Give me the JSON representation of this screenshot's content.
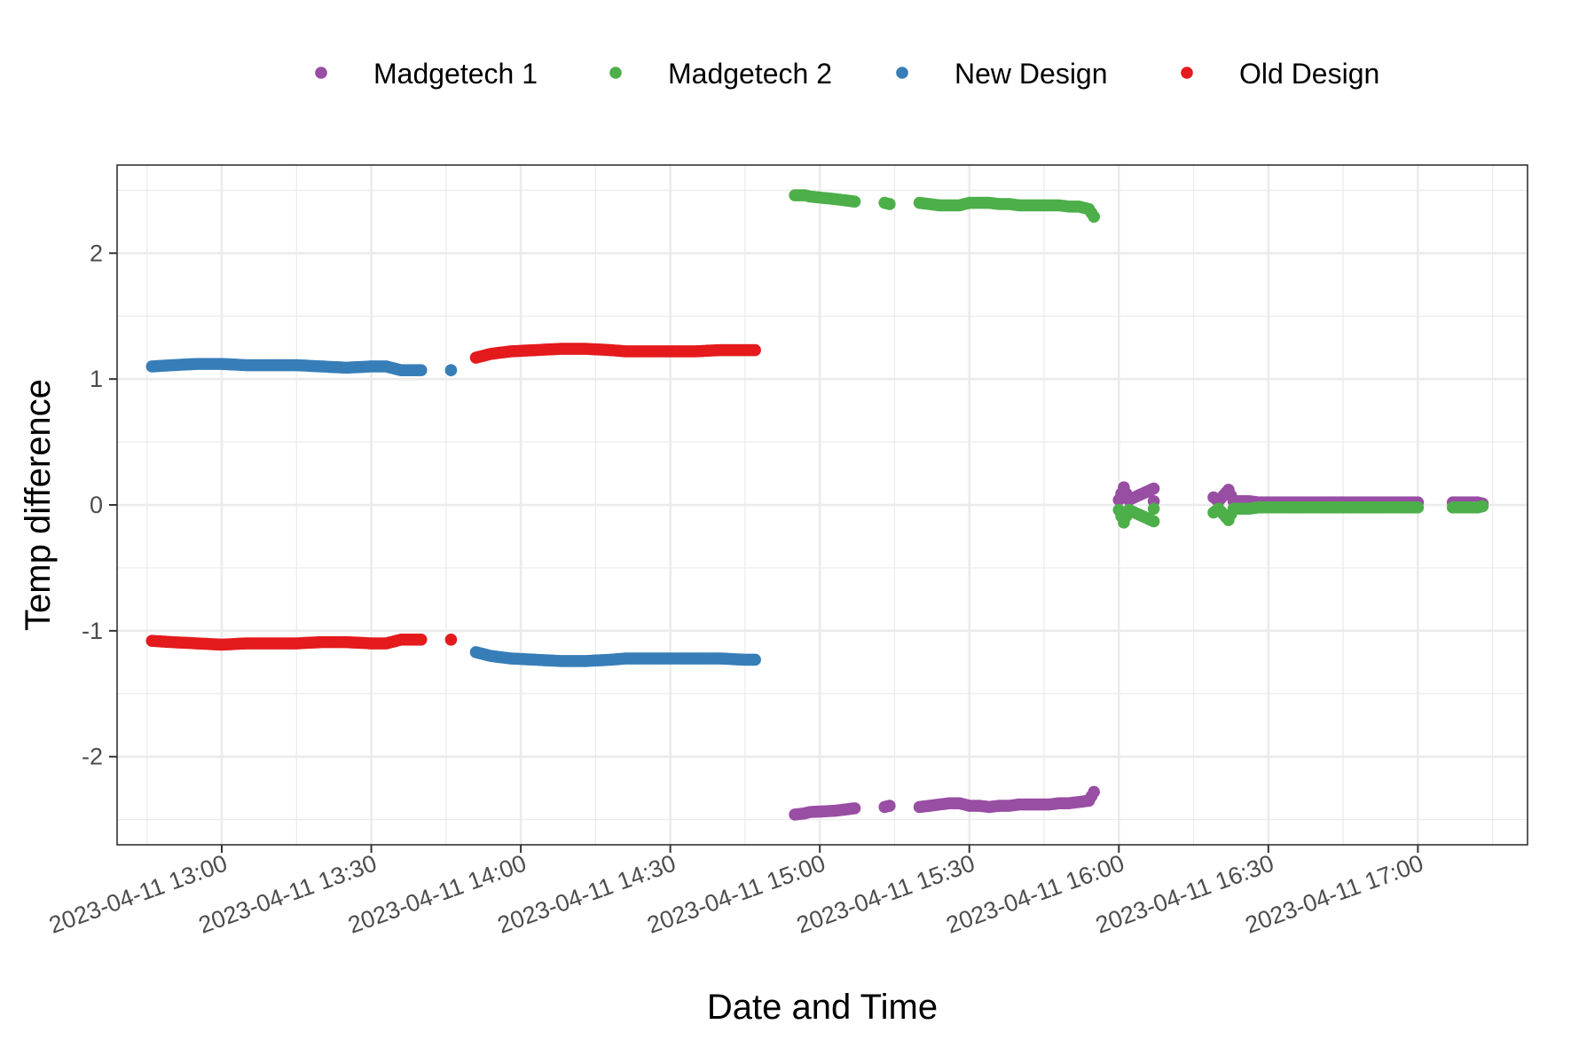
{
  "chart_data": {
    "type": "scatter",
    "title": "",
    "xlabel": "Date and Time",
    "ylabel": "Temp difference",
    "x_type": "datetime",
    "xlim": [
      "2023-04-11 12:39",
      "2023-04-11 17:22"
    ],
    "ylim": [
      -2.7,
      2.7
    ],
    "x_ticks": [
      {
        "value": "2023-04-11 13:00",
        "label": "2023-04-11 13:00"
      },
      {
        "value": "2023-04-11 13:30",
        "label": "2023-04-11 13:30"
      },
      {
        "value": "2023-04-11 14:00",
        "label": "2023-04-11 14:00"
      },
      {
        "value": "2023-04-11 14:30",
        "label": "2023-04-11 14:30"
      },
      {
        "value": "2023-04-11 15:00",
        "label": "2023-04-11 15:00"
      },
      {
        "value": "2023-04-11 15:30",
        "label": "2023-04-11 15:30"
      },
      {
        "value": "2023-04-11 16:00",
        "label": "2023-04-11 16:00"
      },
      {
        "value": "2023-04-11 16:30",
        "label": "2023-04-11 16:30"
      },
      {
        "value": "2023-04-11 17:00",
        "label": "2023-04-11 17:00"
      }
    ],
    "y_ticks": [
      {
        "value": 2,
        "label": "2"
      },
      {
        "value": 1,
        "label": "1"
      },
      {
        "value": 0,
        "label": "0"
      },
      {
        "value": -1,
        "label": "-1"
      },
      {
        "value": -2,
        "label": "-2"
      }
    ],
    "grid": true,
    "legend_position": "top",
    "series": [
      {
        "name": "Madgetech 1",
        "color": "#984EA3",
        "points": [
          [
            "2023-04-11 14:55",
            -2.46
          ],
          [
            "2023-04-11 14:57",
            -2.45
          ],
          [
            "2023-04-11 14:58",
            -2.44
          ],
          [
            "2023-04-11 15:03",
            -2.43
          ],
          [
            "2023-04-11 15:05",
            -2.42
          ],
          [
            "2023-04-11 15:07",
            -2.41
          ],
          [
            "2023-04-11 15:13",
            -2.4
          ],
          [
            "2023-04-11 15:14",
            -2.39
          ],
          [
            "2023-04-11 15:20",
            -2.4
          ],
          [
            "2023-04-11 15:22",
            -2.39
          ],
          [
            "2023-04-11 15:24",
            -2.38
          ],
          [
            "2023-04-11 15:26",
            -2.37
          ],
          [
            "2023-04-11 15:28",
            -2.37
          ],
          [
            "2023-04-11 15:30",
            -2.39
          ],
          [
            "2023-04-11 15:32",
            -2.39
          ],
          [
            "2023-04-11 15:34",
            -2.4
          ],
          [
            "2023-04-11 15:36",
            -2.39
          ],
          [
            "2023-04-11 15:38",
            -2.39
          ],
          [
            "2023-04-11 15:40",
            -2.38
          ],
          [
            "2023-04-11 15:42",
            -2.38
          ],
          [
            "2023-04-11 15:44",
            -2.38
          ],
          [
            "2023-04-11 15:46",
            -2.38
          ],
          [
            "2023-04-11 15:48",
            -2.37
          ],
          [
            "2023-04-11 15:50",
            -2.37
          ],
          [
            "2023-04-11 15:52",
            -2.36
          ],
          [
            "2023-04-11 15:54",
            -2.35
          ],
          [
            "2023-04-11 15:55",
            -2.28
          ],
          [
            "2023-04-11 16:00",
            0.04
          ],
          [
            "2023-04-11 16:01",
            0.14
          ],
          [
            "2023-04-11 16:02",
            0.04
          ],
          [
            "2023-04-11 16:07",
            0.13
          ],
          [
            "2023-04-11 16:07",
            0.03
          ],
          [
            "2023-04-11 16:19",
            0.06
          ],
          [
            "2023-04-11 16:20",
            0.03
          ],
          [
            "2023-04-11 16:22",
            0.12
          ],
          [
            "2023-04-11 16:23",
            0.03
          ],
          [
            "2023-04-11 16:26",
            0.03
          ],
          [
            "2023-04-11 16:28",
            0.02
          ],
          [
            "2023-04-11 16:30",
            0.02
          ],
          [
            "2023-04-11 16:32",
            0.02
          ],
          [
            "2023-04-11 16:35",
            0.02
          ],
          [
            "2023-04-11 16:38",
            0.02
          ],
          [
            "2023-04-11 16:40",
            0.02
          ],
          [
            "2023-04-11 16:43",
            0.02
          ],
          [
            "2023-04-11 16:45",
            0.02
          ],
          [
            "2023-04-11 16:48",
            0.02
          ],
          [
            "2023-04-11 16:50",
            0.02
          ],
          [
            "2023-04-11 16:52",
            0.02
          ],
          [
            "2023-04-11 16:55",
            0.02
          ],
          [
            "2023-04-11 16:58",
            0.02
          ],
          [
            "2023-04-11 17:00",
            0.02
          ],
          [
            "2023-04-11 17:07",
            0.02
          ],
          [
            "2023-04-11 17:12",
            0.02
          ],
          [
            "2023-04-11 17:13",
            0.01
          ]
        ]
      },
      {
        "name": "Madgetech 2",
        "color": "#4DAF4A",
        "points": [
          [
            "2023-04-11 14:55",
            2.46
          ],
          [
            "2023-04-11 14:57",
            2.46
          ],
          [
            "2023-04-11 14:58",
            2.45
          ],
          [
            "2023-04-11 15:03",
            2.43
          ],
          [
            "2023-04-11 15:05",
            2.42
          ],
          [
            "2023-04-11 15:07",
            2.41
          ],
          [
            "2023-04-11 15:13",
            2.4
          ],
          [
            "2023-04-11 15:14",
            2.39
          ],
          [
            "2023-04-11 15:20",
            2.4
          ],
          [
            "2023-04-11 15:22",
            2.39
          ],
          [
            "2023-04-11 15:24",
            2.38
          ],
          [
            "2023-04-11 15:26",
            2.38
          ],
          [
            "2023-04-11 15:28",
            2.38
          ],
          [
            "2023-04-11 15:30",
            2.4
          ],
          [
            "2023-04-11 15:32",
            2.4
          ],
          [
            "2023-04-11 15:34",
            2.4
          ],
          [
            "2023-04-11 15:36",
            2.39
          ],
          [
            "2023-04-11 15:38",
            2.39
          ],
          [
            "2023-04-11 15:40",
            2.38
          ],
          [
            "2023-04-11 15:42",
            2.38
          ],
          [
            "2023-04-11 15:44",
            2.38
          ],
          [
            "2023-04-11 15:46",
            2.38
          ],
          [
            "2023-04-11 15:48",
            2.38
          ],
          [
            "2023-04-11 15:50",
            2.37
          ],
          [
            "2023-04-11 15:52",
            2.37
          ],
          [
            "2023-04-11 15:54",
            2.35
          ],
          [
            "2023-04-11 15:55",
            2.29
          ],
          [
            "2023-04-11 16:00",
            -0.04
          ],
          [
            "2023-04-11 16:01",
            -0.14
          ],
          [
            "2023-04-11 16:02",
            -0.04
          ],
          [
            "2023-04-11 16:07",
            -0.13
          ],
          [
            "2023-04-11 16:07",
            -0.03
          ],
          [
            "2023-04-11 16:19",
            -0.06
          ],
          [
            "2023-04-11 16:20",
            -0.03
          ],
          [
            "2023-04-11 16:22",
            -0.12
          ],
          [
            "2023-04-11 16:23",
            -0.03
          ],
          [
            "2023-04-11 16:26",
            -0.03
          ],
          [
            "2023-04-11 16:28",
            -0.02
          ],
          [
            "2023-04-11 16:30",
            -0.02
          ],
          [
            "2023-04-11 16:32",
            -0.02
          ],
          [
            "2023-04-11 16:35",
            -0.02
          ],
          [
            "2023-04-11 16:38",
            -0.02
          ],
          [
            "2023-04-11 16:40",
            -0.02
          ],
          [
            "2023-04-11 16:43",
            -0.02
          ],
          [
            "2023-04-11 16:45",
            -0.02
          ],
          [
            "2023-04-11 16:48",
            -0.02
          ],
          [
            "2023-04-11 16:50",
            -0.02
          ],
          [
            "2023-04-11 16:52",
            -0.02
          ],
          [
            "2023-04-11 16:55",
            -0.02
          ],
          [
            "2023-04-11 16:58",
            -0.02
          ],
          [
            "2023-04-11 17:00",
            -0.02
          ],
          [
            "2023-04-11 17:07",
            -0.02
          ],
          [
            "2023-04-11 17:12",
            -0.02
          ],
          [
            "2023-04-11 17:13",
            -0.01
          ]
        ]
      },
      {
        "name": "New Design",
        "color": "#377EB8",
        "points": [
          [
            "2023-04-11 12:46",
            1.1
          ],
          [
            "2023-04-11 12:50",
            1.11
          ],
          [
            "2023-04-11 12:55",
            1.12
          ],
          [
            "2023-04-11 13:00",
            1.12
          ],
          [
            "2023-04-11 13:05",
            1.11
          ],
          [
            "2023-04-11 13:10",
            1.11
          ],
          [
            "2023-04-11 13:15",
            1.11
          ],
          [
            "2023-04-11 13:20",
            1.1
          ],
          [
            "2023-04-11 13:25",
            1.09
          ],
          [
            "2023-04-11 13:30",
            1.1
          ],
          [
            "2023-04-11 13:33",
            1.1
          ],
          [
            "2023-04-11 13:36",
            1.07
          ],
          [
            "2023-04-11 13:40",
            1.07
          ],
          [
            "2023-04-11 13:46",
            1.07
          ],
          [
            "2023-04-11 13:51",
            -1.17
          ],
          [
            "2023-04-11 13:54",
            -1.2
          ],
          [
            "2023-04-11 13:58",
            -1.22
          ],
          [
            "2023-04-11 14:03",
            -1.23
          ],
          [
            "2023-04-11 14:08",
            -1.24
          ],
          [
            "2023-04-11 14:13",
            -1.24
          ],
          [
            "2023-04-11 14:18",
            -1.23
          ],
          [
            "2023-04-11 14:21",
            -1.22
          ],
          [
            "2023-04-11 14:25",
            -1.22
          ],
          [
            "2023-04-11 14:30",
            -1.22
          ],
          [
            "2023-04-11 14:35",
            -1.22
          ],
          [
            "2023-04-11 14:40",
            -1.22
          ],
          [
            "2023-04-11 14:45",
            -1.23
          ],
          [
            "2023-04-11 14:47",
            -1.23
          ]
        ]
      },
      {
        "name": "Old Design",
        "color": "#E41A1C",
        "points": [
          [
            "2023-04-11 12:46",
            -1.08
          ],
          [
            "2023-04-11 12:50",
            -1.09
          ],
          [
            "2023-04-11 12:55",
            -1.1
          ],
          [
            "2023-04-11 13:00",
            -1.11
          ],
          [
            "2023-04-11 13:05",
            -1.1
          ],
          [
            "2023-04-11 13:10",
            -1.1
          ],
          [
            "2023-04-11 13:15",
            -1.1
          ],
          [
            "2023-04-11 13:20",
            -1.09
          ],
          [
            "2023-04-11 13:25",
            -1.09
          ],
          [
            "2023-04-11 13:30",
            -1.1
          ],
          [
            "2023-04-11 13:33",
            -1.1
          ],
          [
            "2023-04-11 13:36",
            -1.07
          ],
          [
            "2023-04-11 13:40",
            -1.07
          ],
          [
            "2023-04-11 13:46",
            -1.07
          ],
          [
            "2023-04-11 13:51",
            1.17
          ],
          [
            "2023-04-11 13:54",
            1.2
          ],
          [
            "2023-04-11 13:58",
            1.22
          ],
          [
            "2023-04-11 14:03",
            1.23
          ],
          [
            "2023-04-11 14:08",
            1.24
          ],
          [
            "2023-04-11 14:13",
            1.24
          ],
          [
            "2023-04-11 14:18",
            1.23
          ],
          [
            "2023-04-11 14:21",
            1.22
          ],
          [
            "2023-04-11 14:25",
            1.22
          ],
          [
            "2023-04-11 14:30",
            1.22
          ],
          [
            "2023-04-11 14:35",
            1.22
          ],
          [
            "2023-04-11 14:40",
            1.23
          ],
          [
            "2023-04-11 14:45",
            1.23
          ],
          [
            "2023-04-11 14:47",
            1.23
          ]
        ]
      }
    ]
  }
}
